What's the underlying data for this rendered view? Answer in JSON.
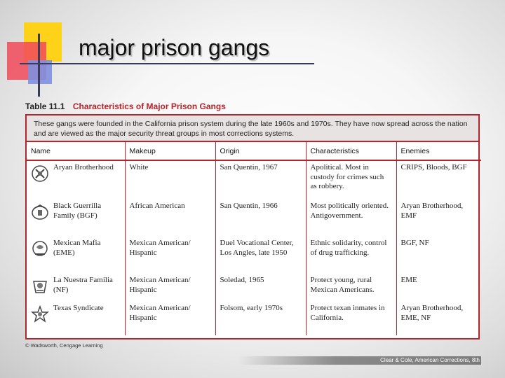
{
  "slide": {
    "title": "major prison gangs"
  },
  "table": {
    "number": "Table 11.1",
    "title": "Characteristics of Major Prison Gangs",
    "intro": "These gangs were founded in the California prison system during the late 1960s and 1970s. They have now spread across the nation and are viewed as the major security threat groups in most corrections systems.",
    "headers": [
      "Name",
      "Makeup",
      "Origin",
      "Characteristics",
      "Enemies"
    ],
    "rows": [
      {
        "icon": "aryan-brotherhood-emblem-icon",
        "name": "Aryan Brotherhood",
        "makeup": "White",
        "origin": "San Quentin, 1967",
        "characteristics": "Apolitical. Most in custody for crimes such as robbery.",
        "enemies": "CRIPS, Bloods, BGF"
      },
      {
        "icon": "black-guerrilla-family-emblem-icon",
        "name": "Black Guerrilla Family (BGF)",
        "makeup": "African American",
        "origin": "San Quentin, 1966",
        "characteristics": "Most politically oriented. Antigovernment.",
        "enemies": "Aryan Brotherhood, EMF"
      },
      {
        "icon": "mexican-mafia-emblem-icon",
        "name": "Mexican Mafia (EME)",
        "makeup": "Mexican American/ Hispanic",
        "origin": "Duel Vocational Center, Los Angles, late 1950",
        "characteristics": "Ethnic solidarity, control of drug trafficking.",
        "enemies": "BGF, NF"
      },
      {
        "icon": "la-nuestra-familia-emblem-icon",
        "name": "La Nuestra Familia (NF)",
        "makeup": "Mexican American/ Hispanic",
        "origin": "Soledad, 1965",
        "characteristics": "Protect young, rural Mexican Americans.",
        "enemies": "EME"
      },
      {
        "icon": "texas-syndicate-emblem-icon",
        "name": "Texas Syndicate",
        "makeup": "Mexican American/ Hispanic",
        "origin": "Folsom, early 1970s",
        "characteristics": "Protect texan inmates in California.",
        "enemies": "Aryan Brotherhood, EME, NF"
      }
    ],
    "credit": "© Wadsworth, Cengage Learning"
  },
  "footer": {
    "text": "Clear & Cole, American Corrections, 8th"
  }
}
